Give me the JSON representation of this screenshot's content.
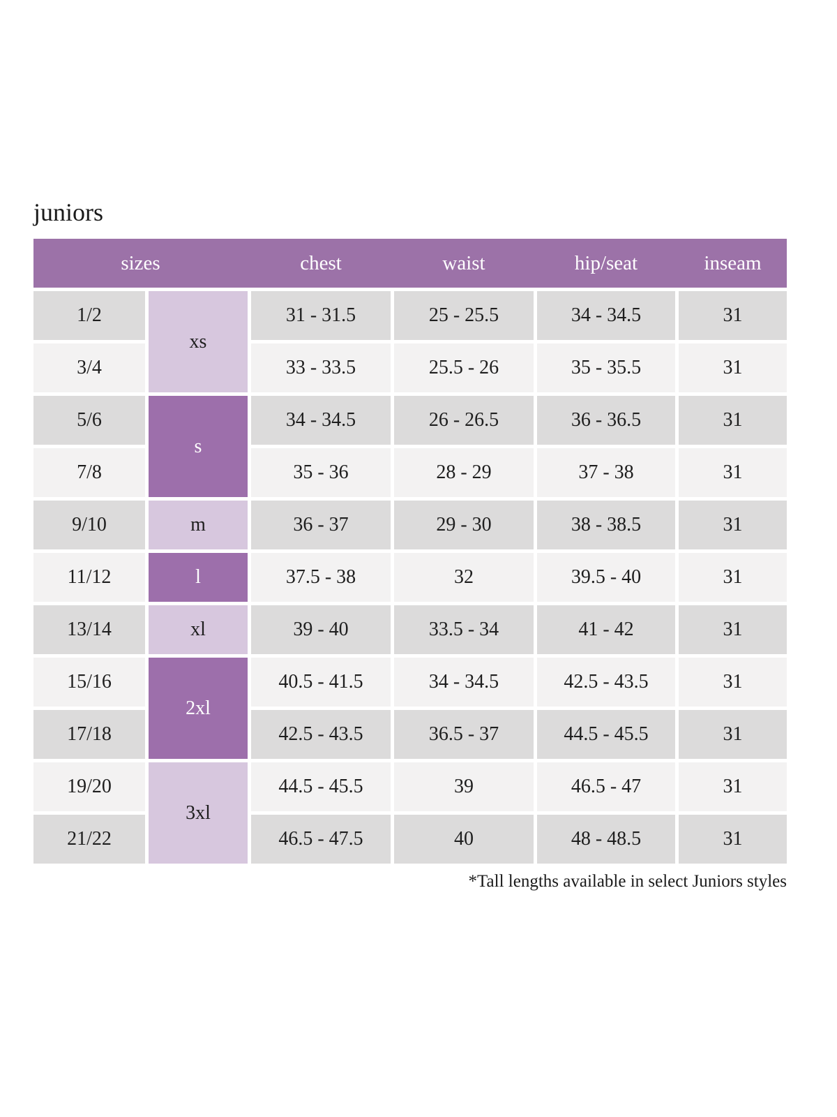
{
  "title": "juniors",
  "footnote": "*Tall lengths available in select Juniors styles",
  "colors": {
    "header_bg": "#9c72a8",
    "letter_dark_bg": "#9d6fab",
    "letter_light_bg": "#d7c7de",
    "row_dark_bg": "#dcdbdb",
    "row_light_bg": "#f3f2f2",
    "header_text": "#ffffff",
    "body_text": "#1e1e1e"
  },
  "table": {
    "headers": {
      "sizes": "sizes",
      "chest": "chest",
      "waist": "waist",
      "hip_seat": "hip/seat",
      "inseam": "inseam"
    },
    "letter_sizes": [
      {
        "label": "xs",
        "rows_spanned": 2,
        "shade": "light"
      },
      {
        "label": "s",
        "rows_spanned": 2,
        "shade": "dark"
      },
      {
        "label": "m",
        "rows_spanned": 1,
        "shade": "light"
      },
      {
        "label": "l",
        "rows_spanned": 1,
        "shade": "dark"
      },
      {
        "label": "xl",
        "rows_spanned": 1,
        "shade": "light"
      },
      {
        "label": "2xl",
        "rows_spanned": 2,
        "shade": "dark"
      },
      {
        "label": "3xl",
        "rows_spanned": 2,
        "shade": "light"
      }
    ],
    "rows": [
      {
        "size": "1/2",
        "chest": "31 - 31.5",
        "waist": "25 - 25.5",
        "hip_seat": "34 - 34.5",
        "inseam": "31"
      },
      {
        "size": "3/4",
        "chest": "33 - 33.5",
        "waist": "25.5 - 26",
        "hip_seat": "35 - 35.5",
        "inseam": "31"
      },
      {
        "size": "5/6",
        "chest": "34 - 34.5",
        "waist": "26 - 26.5",
        "hip_seat": "36 - 36.5",
        "inseam": "31"
      },
      {
        "size": "7/8",
        "chest": "35 - 36",
        "waist": "28 - 29",
        "hip_seat": "37 - 38",
        "inseam": "31"
      },
      {
        "size": "9/10",
        "chest": "36 - 37",
        "waist": "29 - 30",
        "hip_seat": "38 - 38.5",
        "inseam": "31"
      },
      {
        "size": "11/12",
        "chest": "37.5 - 38",
        "waist": "32",
        "hip_seat": "39.5 - 40",
        "inseam": "31"
      },
      {
        "size": "13/14",
        "chest": "39 - 40",
        "waist": "33.5 - 34",
        "hip_seat": "41 - 42",
        "inseam": "31"
      },
      {
        "size": "15/16",
        "chest": "40.5 - 41.5",
        "waist": "34 - 34.5",
        "hip_seat": "42.5 - 43.5",
        "inseam": "31"
      },
      {
        "size": "17/18",
        "chest": "42.5 - 43.5",
        "waist": "36.5 - 37",
        "hip_seat": "44.5 - 45.5",
        "inseam": "31"
      },
      {
        "size": "19/20",
        "chest": "44.5 - 45.5",
        "waist": "39",
        "hip_seat": "46.5 - 47",
        "inseam": "31"
      },
      {
        "size": "21/22",
        "chest": "46.5 - 47.5",
        "waist": "40",
        "hip_seat": "48 - 48.5",
        "inseam": "31"
      }
    ]
  }
}
